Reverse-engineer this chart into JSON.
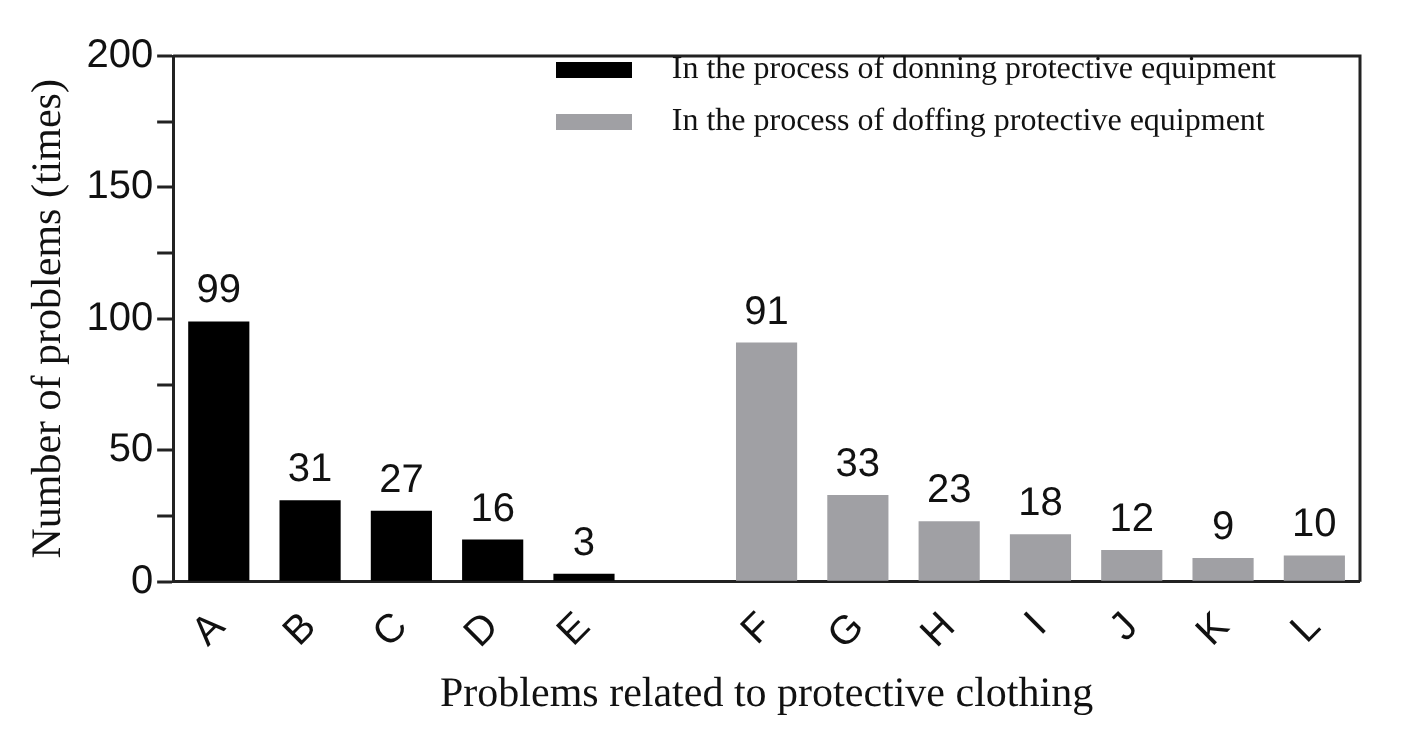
{
  "chart_data": {
    "type": "bar",
    "xlabel": "Problems related to protective clothing",
    "ylabel": "Number of problems (times)",
    "categories": [
      "A",
      "B",
      "C",
      "D",
      "E",
      null,
      "F",
      "G",
      "H",
      "I",
      "J",
      "K",
      "L"
    ],
    "series": [
      {
        "name": "In the process of donning protective equipment",
        "color": "#000000",
        "values": [
          99,
          31,
          27,
          16,
          3,
          null,
          null,
          null,
          null,
          null,
          null,
          null,
          null
        ]
      },
      {
        "name": "In the process of doffing protective equipment",
        "color": "#a0a0a4",
        "values": [
          null,
          null,
          null,
          null,
          null,
          null,
          91,
          33,
          23,
          18,
          12,
          9,
          10
        ]
      }
    ],
    "ylim": [
      0,
      200
    ],
    "yticks": [
      0,
      {
        "value": 25,
        "label": null
      },
      50,
      {
        "value": 75,
        "label": null
      },
      100,
      {
        "value": 125,
        "label": null
      },
      150,
      {
        "value": 175,
        "label": null
      },
      200
    ],
    "data_labels": true,
    "grid": false,
    "legend": "top right"
  }
}
